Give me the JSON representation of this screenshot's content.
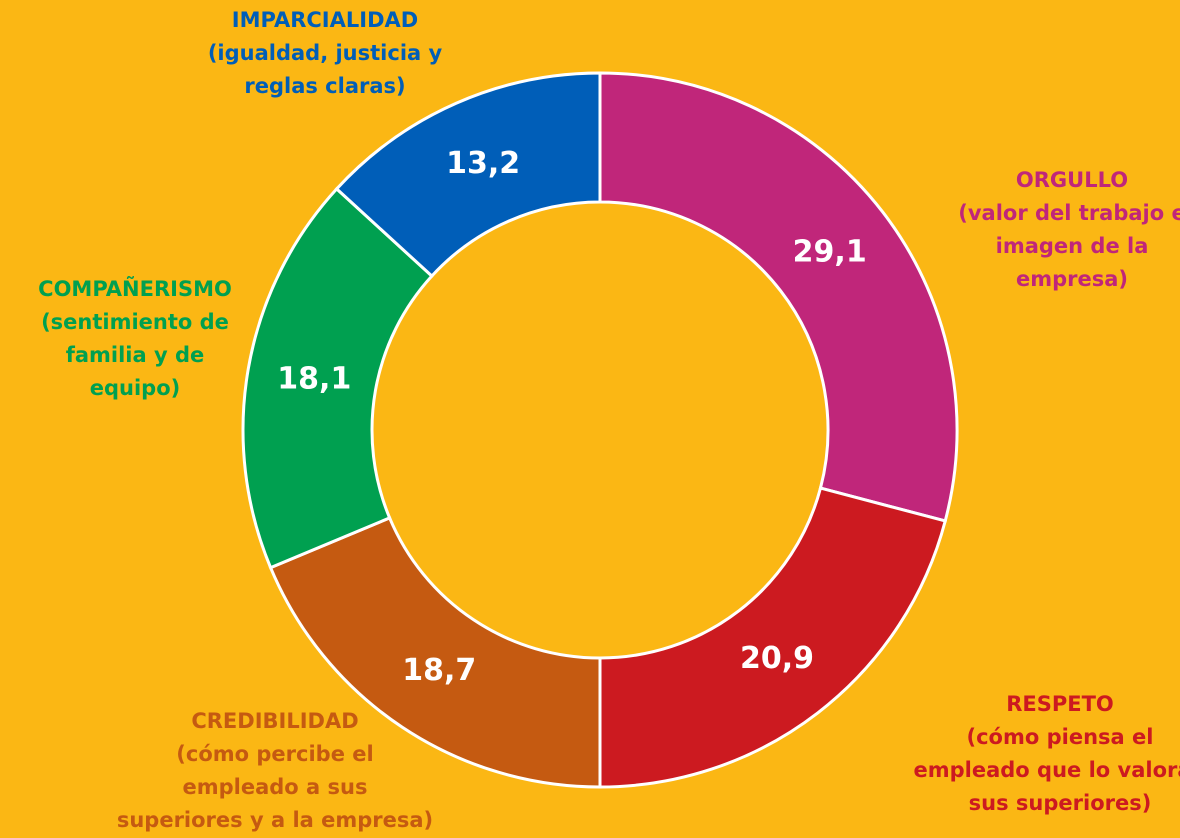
{
  "chart_data": {
    "type": "donut",
    "categories": [
      "ORGULLO",
      "RESPETO",
      "CREDIBILIDAD",
      "COMPAÑERISMO",
      "IMPARCIALIDAD"
    ],
    "descriptions": [
      [
        "(valor del trabajo e",
        "imagen de la",
        "empresa)"
      ],
      [
        "(cómo piensa el",
        "empleado que lo valoran",
        "sus superiores)"
      ],
      [
        "(cómo percibe el",
        "empleado a sus",
        "superiores y a la empresa)"
      ],
      [
        "(sentimiento de",
        "familia y de",
        "equipo)"
      ],
      [
        "(igualdad, justicia y",
        "reglas claras)"
      ]
    ],
    "values": [
      29.1,
      20.9,
      18.7,
      18.1,
      13.2
    ],
    "value_labels": [
      "29,1",
      "20,9",
      "18,7",
      "18,1",
      "13,2"
    ],
    "colors": [
      "#c0267a",
      "#cc1a20",
      "#c55a11",
      "#00a050",
      "#005eb8"
    ]
  }
}
